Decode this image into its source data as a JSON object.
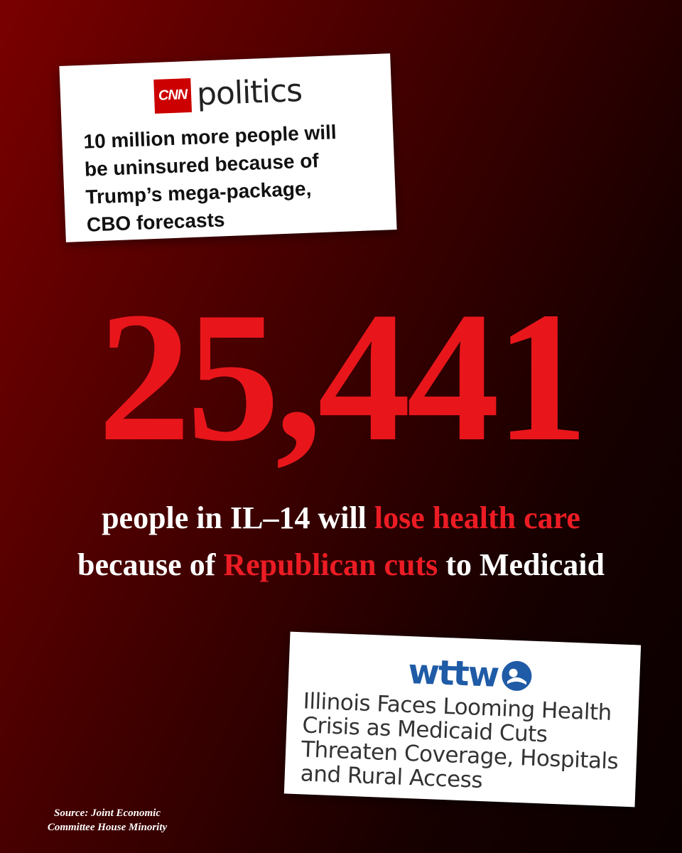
{
  "cnn_card": {
    "logo": "CNN",
    "brand": "politics",
    "headline": [
      "10 million more people will",
      "be uninsured because of",
      "Trump’s mega-package,",
      "CBO forecasts"
    ]
  },
  "big_number": "25,441",
  "statement": {
    "line1": [
      "people in IL–14 will",
      "lose health care"
    ],
    "line2": [
      "because of",
      "Republican cuts",
      "to Medicaid"
    ]
  },
  "wttw_card": {
    "logo": "wttw",
    "headline": [
      "Illinois Faces Looming Health",
      "Crisis as Medicaid Cuts",
      "Threaten Coverage, Hospitals",
      "and Rural Access"
    ]
  },
  "source": [
    "Source: Joint Economic",
    "Committee House Minority"
  ]
}
